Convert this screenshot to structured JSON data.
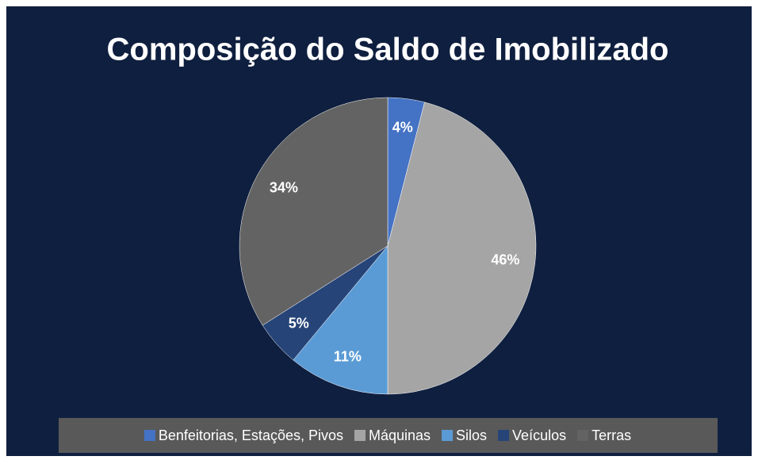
{
  "chart_data": {
    "type": "pie",
    "title": "Composição do Saldo de Imobilizado",
    "categories": [
      "Benfeitorias, Estações, Pivos",
      "Máquinas",
      "Silos",
      "Veículos",
      "Terras"
    ],
    "values": [
      4,
      46,
      11,
      5,
      34
    ],
    "value_labels": [
      "4%",
      "46%",
      "11%",
      "5%",
      "34%"
    ],
    "colors": [
      "#4472c4",
      "#a5a5a5",
      "#5b9bd5",
      "#264478",
      "#636363"
    ],
    "legend": "bottom"
  }
}
